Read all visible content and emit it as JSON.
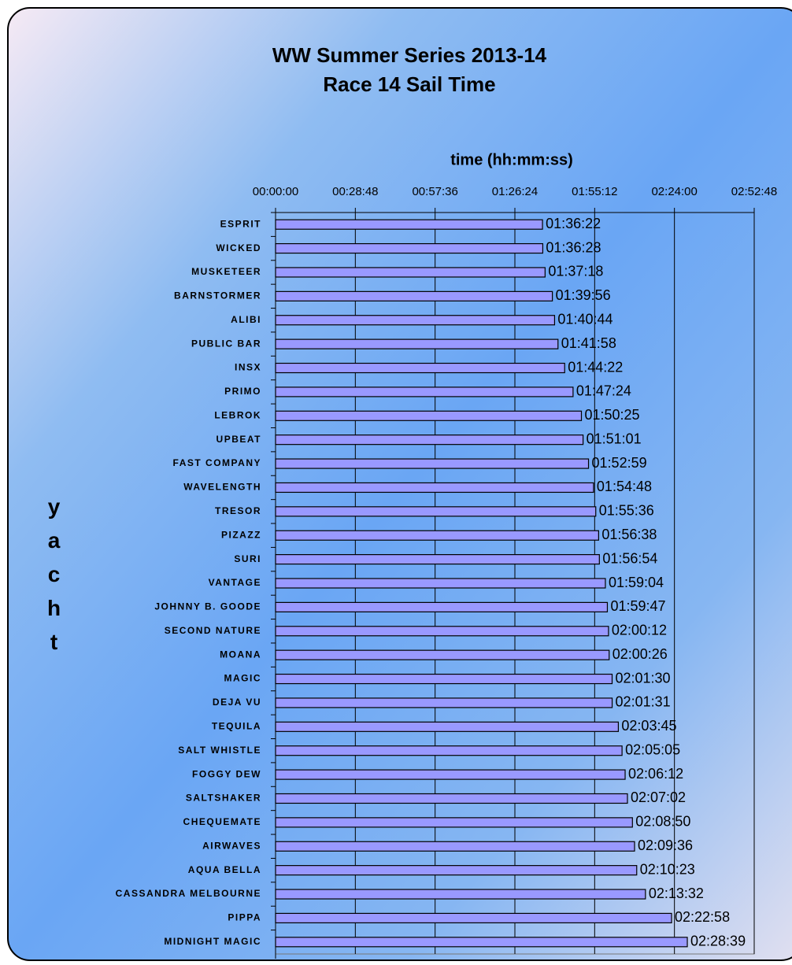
{
  "chart_data": {
    "type": "barh",
    "title": [
      "WW Summer Series 2013-14",
      "Race 14 Sail Time"
    ],
    "x_label": "time (hh:mm:ss)",
    "y_label": "yacht",
    "categories": [
      "ESPRIT",
      "WICKED",
      "MUSKETEER",
      "BARNSTORMER",
      "ALIBI",
      "PUBLIC BAR",
      "INSX",
      "PRIMO",
      "LEBROK",
      "UPBEAT",
      "FAST COMPANY",
      "WAVELENGTH",
      "TRESOR",
      "PIZAZZ",
      "SURI",
      "VANTAGE",
      "JOHNNY B. GOODE",
      "SECOND NATURE",
      "MOANA",
      "MAGIC",
      "DEJA VU",
      "TEQUILA",
      "SALT WHISTLE",
      "FOGGY DEW",
      "SALTSHAKER",
      "CHEQUEMATE",
      "AIRWAVES",
      "AQUA BELLA",
      "CASSANDRA MELBOURNE",
      "PIPPA",
      "MIDNIGHT MAGIC"
    ],
    "values": [
      5782,
      5788,
      5838,
      5996,
      6044,
      6118,
      6262,
      6444,
      6625,
      6661,
      6779,
      6888,
      6936,
      6998,
      7014,
      7144,
      7187,
      7212,
      7226,
      7290,
      7291,
      7425,
      7505,
      7572,
      7622,
      7730,
      7776,
      7823,
      8012,
      8578,
      8919
    ],
    "value_labels": [
      "01:36:22",
      "01:36:28",
      "01:37:18",
      "01:39:56",
      "01:40:44",
      "01:41:58",
      "01:44:22",
      "01:47:24",
      "01:50:25",
      "01:51:01",
      "01:52:59",
      "01:54:48",
      "01:55:36",
      "01:56:38",
      "01:56:54",
      "01:59:04",
      "01:59:47",
      "02:00:12",
      "02:00:26",
      "02:01:30",
      "02:01:31",
      "02:03:45",
      "02:05:05",
      "02:06:12",
      "02:07:02",
      "02:08:50",
      "02:09:36",
      "02:10:23",
      "02:13:32",
      "02:22:58",
      "02:28:39"
    ],
    "color": "#9999ff",
    "xlim": [
      0,
      10368
    ],
    "xticks": [
      {
        "value": 0,
        "label": "00:00:00"
      },
      {
        "value": 1728,
        "label": "00:28:48"
      },
      {
        "value": 3456,
        "label": "00:57:36"
      },
      {
        "value": 5184,
        "label": "01:26:24"
      },
      {
        "value": 6912,
        "label": "01:55:12"
      },
      {
        "value": 8640,
        "label": "02:24:00"
      },
      {
        "value": 10368,
        "label": "02:52:48"
      }
    ],
    "grid": true
  }
}
